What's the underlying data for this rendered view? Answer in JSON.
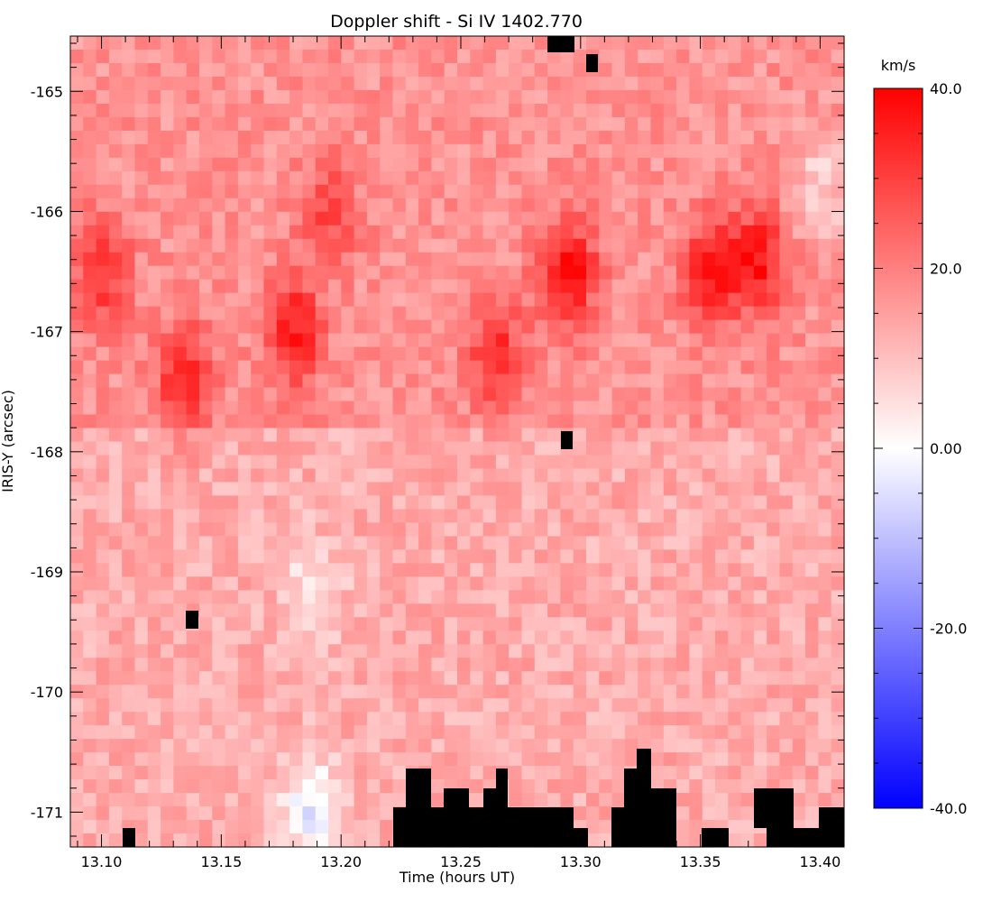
{
  "chart_data": {
    "type": "heatmap",
    "title": "Doppler shift - Si IV 1402.770",
    "xlabel": "Time (hours UT)",
    "ylabel": "IRIS-Y (arcsec)",
    "xlim": [
      13.087,
      13.41
    ],
    "ylim": [
      -171.29,
      -164.54
    ],
    "x_ticks": [
      13.1,
      13.15,
      13.2,
      13.25,
      13.3,
      13.35,
      13.4
    ],
    "x_tick_labels": [
      "13.10",
      "13.15",
      "13.20",
      "13.25",
      "13.30",
      "13.35",
      "13.40"
    ],
    "y_ticks": [
      -165,
      -166,
      -167,
      -168,
      -169,
      -170,
      -171
    ],
    "y_tick_labels": [
      "-165",
      "-166",
      "-167",
      "-168",
      "-169",
      "-170",
      "-171"
    ],
    "grid": false,
    "colorbar": {
      "unit_label": "km/s",
      "range": [
        -40,
        40
      ],
      "ticks": [
        40,
        20,
        0,
        -20,
        -40
      ],
      "tick_labels": [
        "40.0",
        "20.0",
        "0.00",
        "-20.0",
        "-40.0"
      ],
      "colormap": [
        "#0000ff",
        "#ffffff",
        "#ff0000"
      ]
    },
    "grid_dims": {
      "columns": 60,
      "rows": 60
    },
    "notes_missing_color": "#000000",
    "features": [
      {
        "t": 13.1,
        "y": -166.5,
        "v": 30
      },
      {
        "t": 13.135,
        "y": -167.4,
        "v": 32
      },
      {
        "t": 13.18,
        "y": -167.0,
        "v": 33
      },
      {
        "t": 13.195,
        "y": -166.0,
        "v": 26
      },
      {
        "t": 13.265,
        "y": -167.2,
        "v": 30
      },
      {
        "t": 13.295,
        "y": -166.5,
        "v": 35
      },
      {
        "t": 13.355,
        "y": -166.5,
        "v": 34
      },
      {
        "t": 13.375,
        "y": -166.4,
        "v": 33
      },
      {
        "t": 13.4,
        "y": -165.8,
        "v": 4
      },
      {
        "t": 13.188,
        "y": -171.0,
        "v": -3
      },
      {
        "t": 13.188,
        "y": -169.2,
        "v": 4
      }
    ]
  }
}
